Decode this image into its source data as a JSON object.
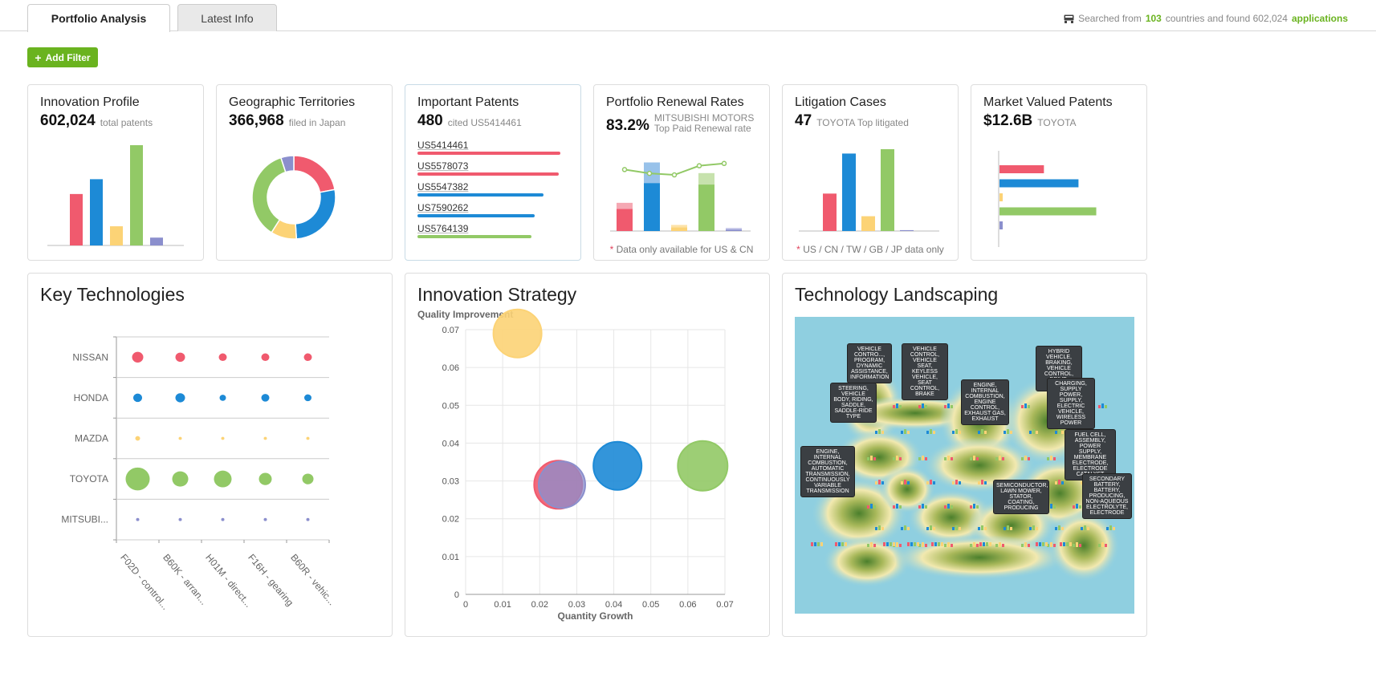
{
  "tabs": [
    {
      "label": "Portfolio Analysis",
      "active": true
    },
    {
      "label": "Latest Info",
      "active": false
    }
  ],
  "search_info": {
    "prefix": "Searched from",
    "country_count": "103",
    "middle": "countries and found 602,024",
    "suffix": "applications",
    "icon": "search-db-icon"
  },
  "add_filter": {
    "label": "Add Filter",
    "icon": "plus-icon"
  },
  "colors": {
    "red": "#f05a6e",
    "blue": "#1d8ad6",
    "yellow": "#fcd376",
    "green": "#92c966",
    "purple": "#8b8fcd",
    "accent": "#6ab31f"
  },
  "innovation_profile": {
    "title": "Innovation Profile",
    "value": "602,024",
    "sub": "total patents",
    "chart_data": {
      "type": "bar",
      "values": [
        59,
        76,
        22,
        115,
        9
      ]
    }
  },
  "geographic": {
    "title": "Geographic Territories",
    "value": "366,968",
    "sub": "filed in Japan",
    "chart_data": {
      "type": "pie",
      "values": [
        22,
        27,
        10,
        36,
        5
      ]
    }
  },
  "important_patents": {
    "title": "Important Patents",
    "value": "480",
    "sub": "cited US5414461",
    "patents": [
      {
        "label": "US5414461",
        "value": 100
      },
      {
        "label": "US5578073",
        "value": 99
      },
      {
        "label": "US5547382",
        "value": 88
      },
      {
        "label": "US7590262",
        "value": 82
      },
      {
        "label": "US5764139",
        "value": 80
      }
    ]
  },
  "renewal": {
    "title": "Portfolio Renewal Rates",
    "value": "83.2%",
    "sub_line1": "MITSUBISHI MOTORS",
    "sub_line2": "Top Paid Renewal rate",
    "note_star": "*",
    "note": "Data only available for US & CN",
    "chart_data": {
      "type": "bar",
      "bottom": [
        29,
        63,
        5,
        61,
        2
      ],
      "top": [
        8,
        27,
        3,
        15,
        2
      ],
      "line": [
        68,
        63,
        61,
        73,
        76
      ]
    }
  },
  "litigation": {
    "title": "Litigation Cases",
    "value": "47",
    "sub": "TOYOTA Top litigated",
    "note_star": "*",
    "note": "US / CN / TW / GB / JP data only",
    "chart_data": {
      "type": "bar",
      "values": [
        43,
        89,
        17,
        94,
        1
      ]
    }
  },
  "market": {
    "title": "Market Valued Patents",
    "value": "$12.6B",
    "sub": "TOYOTA",
    "chart_data": {
      "type": "bar",
      "orientation": "horizontal",
      "values": [
        45,
        80,
        3,
        98,
        2
      ]
    }
  },
  "key_tech": {
    "title": "Key Technologies",
    "chart_data": {
      "type": "scatter",
      "rows": [
        "NISSAN",
        "HONDA",
        "MAZDA",
        "TOYOTA",
        "MITSUBI..."
      ],
      "columns": [
        "F02D - control...",
        "B60K - arran...",
        "H01M - direct...",
        "F16H - gearing",
        "B60R - vehic..."
      ],
      "sizes": [
        [
          7,
          6,
          5,
          5,
          5
        ],
        [
          5.5,
          6,
          4,
          5,
          4.5
        ],
        [
          3,
          2,
          2,
          2,
          2
        ],
        [
          15,
          10,
          11,
          8,
          7
        ],
        [
          2,
          2,
          2,
          2,
          2
        ]
      ]
    }
  },
  "strategy": {
    "title": "Innovation Strategy",
    "chart_data": {
      "type": "scatter",
      "ylabel": "Quality Improvement",
      "xlabel": "Quantity Growth",
      "xlim": [
        0,
        0.07
      ],
      "ylim": [
        0,
        0.07
      ],
      "xticks": [
        "0",
        "0.01",
        "0.02",
        "0.03",
        "0.04",
        "0.05",
        "0.06",
        "0.07"
      ],
      "yticks": [
        "0",
        "0.01",
        "0.02",
        "0.03",
        "0.04",
        "0.05",
        "0.06",
        "0.07"
      ],
      "bubbles": [
        {
          "x": 0.014,
          "y": 0.069,
          "r": 30,
          "color": "yellow"
        },
        {
          "x": 0.025,
          "y": 0.029,
          "r": 30,
          "color": "red"
        },
        {
          "x": 0.026,
          "y": 0.029,
          "r": 29,
          "color": "purple"
        },
        {
          "x": 0.041,
          "y": 0.034,
          "r": 30,
          "color": "blue"
        },
        {
          "x": 0.064,
          "y": 0.034,
          "r": 31,
          "color": "green"
        }
      ]
    }
  },
  "landscape": {
    "title": "Technology Landscaping",
    "tips": [
      "VEHICLE CONTRO..., PROGRAM, DYNAMIC ASSISTANCE, INFORMATION",
      "VEHICLE CONTROL, VEHICLE SEAT, KEYLESS VEHICLE, SEAT CONTROL, BRAKE",
      "HYBRID VEHICLE, BRAKING, VEHICLE CONTROL, DRIVE, ENGINE",
      "STEERING, VEHICLE BODY, RIDING, SADDLE, SADDLE-RIDE TYPE",
      "ENGINE, INTERNAL COMBUSTION, ENGINE CONTROL, EXHAUST GAS, EXHAUST",
      "CHARGING, SUPPLY POWER, SUPPLY, ELECTRIC VEHICLE, WIRELESS POWER",
      "FUEL CELL, ASSEMBLY, POWER SUPPLY, MEMBRANE ELECTRODE, ELECTRODE CATALYST",
      "ENGINE, INTERNAL COMBUSTION, AUTOMATIC TRANSMISSION, CONTINUOUSLY VARIABLE TRANSMISSION",
      "SEMICONDUCTOR, LAWN MOWER, STATOR, COATING, PRODUCING",
      "SECONDARY BATTERY, BATTERY, PRODUCING, NON-AQUEOUS ELECTROLYTE, ELECTRODE"
    ]
  }
}
